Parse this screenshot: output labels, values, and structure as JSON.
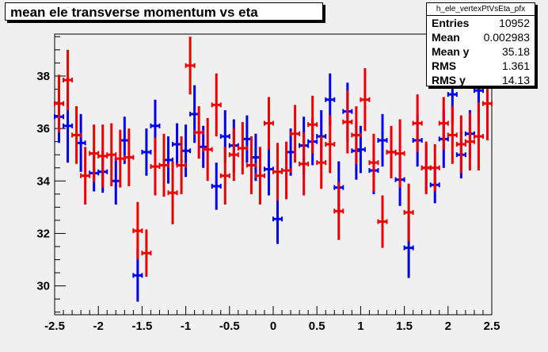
{
  "title": "mean ele transverse momentum vs eta",
  "stats": {
    "name": "h_ele_vertexPtVsEta_pfx",
    "rows": [
      {
        "label": "Entries",
        "value": "10952"
      },
      {
        "label": "Mean",
        "value": "0.002983"
      },
      {
        "label": "Mean y",
        "value": "35.18"
      },
      {
        "label": "RMS",
        "value": "1.361"
      },
      {
        "label": "RMS y",
        "value": "14.13"
      }
    ]
  },
  "colors": {
    "blue": "#0000ee",
    "red": "#ee0000",
    "frame_bg": "#f0f0f0"
  },
  "chart_data": {
    "type": "scatter",
    "title": "mean ele transverse momentum vs eta",
    "xlabel": "",
    "ylabel": "",
    "xlim": [
      -2.5,
      2.5
    ],
    "ylim": [
      28.9,
      39.6
    ],
    "x_ticks": [
      "-2.5",
      "-2",
      "-1.5",
      "-1",
      "-0.5",
      "0",
      "0.5",
      "1",
      "1.5",
      "2",
      "2.5"
    ],
    "y_ticks": [
      "30",
      "32",
      "34",
      "36",
      "38"
    ],
    "grid": false,
    "series": [
      {
        "color": "blue",
        "points": [
          {
            "x": -2.45,
            "y": 36.45,
            "err": 1.0
          },
          {
            "x": -2.35,
            "y": 36.1,
            "err": 1.4
          },
          {
            "x": -2.2,
            "y": 35.45,
            "err": 1.1
          },
          {
            "x": -2.05,
            "y": 34.3,
            "err": 0.7
          },
          {
            "x": -1.95,
            "y": 34.35,
            "err": 0.8
          },
          {
            "x": -1.8,
            "y": 34.0,
            "err": 0.9
          },
          {
            "x": -1.7,
            "y": 35.55,
            "err": 0.9
          },
          {
            "x": -1.55,
            "y": 30.4,
            "err": 1.0
          },
          {
            "x": -1.45,
            "y": 35.1,
            "err": 0.9
          },
          {
            "x": -1.35,
            "y": 36.1,
            "err": 1.0
          },
          {
            "x": -1.2,
            "y": 34.8,
            "err": 0.9
          },
          {
            "x": -1.1,
            "y": 35.4,
            "err": 0.8
          },
          {
            "x": -1.0,
            "y": 35.15,
            "err": 1.0
          },
          {
            "x": -0.9,
            "y": 36.55,
            "err": 1.1
          },
          {
            "x": -0.8,
            "y": 35.3,
            "err": 0.8
          },
          {
            "x": -0.65,
            "y": 33.8,
            "err": 0.9
          },
          {
            "x": -0.55,
            "y": 35.7,
            "err": 1.0
          },
          {
            "x": -0.45,
            "y": 35.35,
            "err": 1.0
          },
          {
            "x": -0.3,
            "y": 35.6,
            "err": 0.9
          },
          {
            "x": -0.2,
            "y": 34.9,
            "err": 0.9
          },
          {
            "x": -0.05,
            "y": 34.45,
            "err": 1.0
          },
          {
            "x": 0.05,
            "y": 32.55,
            "err": 0.95
          },
          {
            "x": 0.2,
            "y": 35.1,
            "err": 0.9
          },
          {
            "x": 0.35,
            "y": 35.35,
            "err": 1.1
          },
          {
            "x": 0.45,
            "y": 35.5,
            "err": 0.9
          },
          {
            "x": 0.55,
            "y": 35.7,
            "err": 1.0
          },
          {
            "x": 0.65,
            "y": 37.1,
            "err": 1.0
          },
          {
            "x": 0.75,
            "y": 33.75,
            "err": 1.0
          },
          {
            "x": 0.85,
            "y": 36.65,
            "err": 1.1
          },
          {
            "x": 0.95,
            "y": 35.15,
            "err": 1.1
          },
          {
            "x": 1.0,
            "y": 35.2,
            "err": 0.9
          },
          {
            "x": 1.15,
            "y": 34.4,
            "err": 0.9
          },
          {
            "x": 1.25,
            "y": 35.55,
            "err": 1.0
          },
          {
            "x": 1.35,
            "y": 35.1,
            "err": 0.9
          },
          {
            "x": 1.45,
            "y": 34.05,
            "err": 1.0
          },
          {
            "x": 1.55,
            "y": 31.45,
            "err": 1.15
          },
          {
            "x": 1.65,
            "y": 35.55,
            "err": 1.0
          },
          {
            "x": 1.75,
            "y": 34.5,
            "err": 0.9
          },
          {
            "x": 1.85,
            "y": 33.85,
            "err": 0.7
          },
          {
            "x": 1.95,
            "y": 35.6,
            "err": 1.1
          },
          {
            "x": 2.05,
            "y": 37.3,
            "err": 1.1
          },
          {
            "x": 2.15,
            "y": 35.0,
            "err": 0.9
          },
          {
            "x": 2.25,
            "y": 35.8,
            "err": 0.9
          },
          {
            "x": 2.35,
            "y": 37.45,
            "err": 1.2
          }
        ]
      },
      {
        "color": "red",
        "points": [
          {
            "x": -2.45,
            "y": 36.95,
            "err": 1.1
          },
          {
            "x": -2.35,
            "y": 37.85,
            "err": 1.15
          },
          {
            "x": -2.25,
            "y": 35.75,
            "err": 1.1
          },
          {
            "x": -2.15,
            "y": 34.2,
            "err": 1.1
          },
          {
            "x": -2.05,
            "y": 35.05,
            "err": 1.1
          },
          {
            "x": -1.95,
            "y": 34.95,
            "err": 1.2
          },
          {
            "x": -1.85,
            "y": 35.0,
            "err": 1.2
          },
          {
            "x": -1.75,
            "y": 34.85,
            "err": 1.1
          },
          {
            "x": -1.65,
            "y": 34.9,
            "err": 1.1
          },
          {
            "x": -1.55,
            "y": 32.1,
            "err": 1.1
          },
          {
            "x": -1.45,
            "y": 31.25,
            "err": 0.9
          },
          {
            "x": -1.35,
            "y": 34.55,
            "err": 1.1
          },
          {
            "x": -1.25,
            "y": 34.6,
            "err": 1.2
          },
          {
            "x": -1.15,
            "y": 33.55,
            "err": 1.2
          },
          {
            "x": -1.05,
            "y": 34.6,
            "err": 1.1
          },
          {
            "x": -0.95,
            "y": 38.4,
            "err": 1.1
          },
          {
            "x": -0.85,
            "y": 35.85,
            "err": 1.0
          },
          {
            "x": -0.75,
            "y": 35.2,
            "err": 1.2
          },
          {
            "x": -0.65,
            "y": 36.9,
            "err": 1.2
          },
          {
            "x": -0.55,
            "y": 34.2,
            "err": 1.1
          },
          {
            "x": -0.45,
            "y": 35.0,
            "err": 1.0
          },
          {
            "x": -0.35,
            "y": 35.25,
            "err": 1.0
          },
          {
            "x": -0.25,
            "y": 34.6,
            "err": 1.1
          },
          {
            "x": -0.15,
            "y": 34.2,
            "err": 1.1
          },
          {
            "x": -0.05,
            "y": 36.2,
            "err": 1.0
          },
          {
            "x": 0.05,
            "y": 34.35,
            "err": 1.1
          },
          {
            "x": 0.15,
            "y": 34.4,
            "err": 1.1
          },
          {
            "x": 0.25,
            "y": 35.8,
            "err": 1.1
          },
          {
            "x": 0.35,
            "y": 34.65,
            "err": 1.2
          },
          {
            "x": 0.45,
            "y": 36.15,
            "err": 1.1
          },
          {
            "x": 0.55,
            "y": 34.7,
            "err": 1.0
          },
          {
            "x": 0.65,
            "y": 35.4,
            "err": 1.1
          },
          {
            "x": 0.75,
            "y": 32.85,
            "err": 1.1
          },
          {
            "x": 0.85,
            "y": 36.25,
            "err": 1.2
          },
          {
            "x": 0.95,
            "y": 35.75,
            "err": 1.1
          },
          {
            "x": 1.05,
            "y": 37.1,
            "err": 1.2
          },
          {
            "x": 1.15,
            "y": 34.7,
            "err": 1.1
          },
          {
            "x": 1.25,
            "y": 32.45,
            "err": 1.0
          },
          {
            "x": 1.35,
            "y": 35.1,
            "err": 1.0
          },
          {
            "x": 1.45,
            "y": 35.05,
            "err": 1.3
          },
          {
            "x": 1.55,
            "y": 32.8,
            "err": 1.1
          },
          {
            "x": 1.65,
            "y": 36.2,
            "err": 1.1
          },
          {
            "x": 1.75,
            "y": 34.5,
            "err": 1.0
          },
          {
            "x": 1.85,
            "y": 34.5,
            "err": 0.9
          },
          {
            "x": 1.95,
            "y": 36.2,
            "err": 1.0
          },
          {
            "x": 2.05,
            "y": 35.75,
            "err": 1.1
          },
          {
            "x": 2.15,
            "y": 35.4,
            "err": 1.1
          },
          {
            "x": 2.25,
            "y": 35.5,
            "err": 1.1
          },
          {
            "x": 2.35,
            "y": 35.7,
            "err": 1.3
          },
          {
            "x": 2.45,
            "y": 36.95,
            "err": 1.4
          }
        ]
      }
    ]
  }
}
